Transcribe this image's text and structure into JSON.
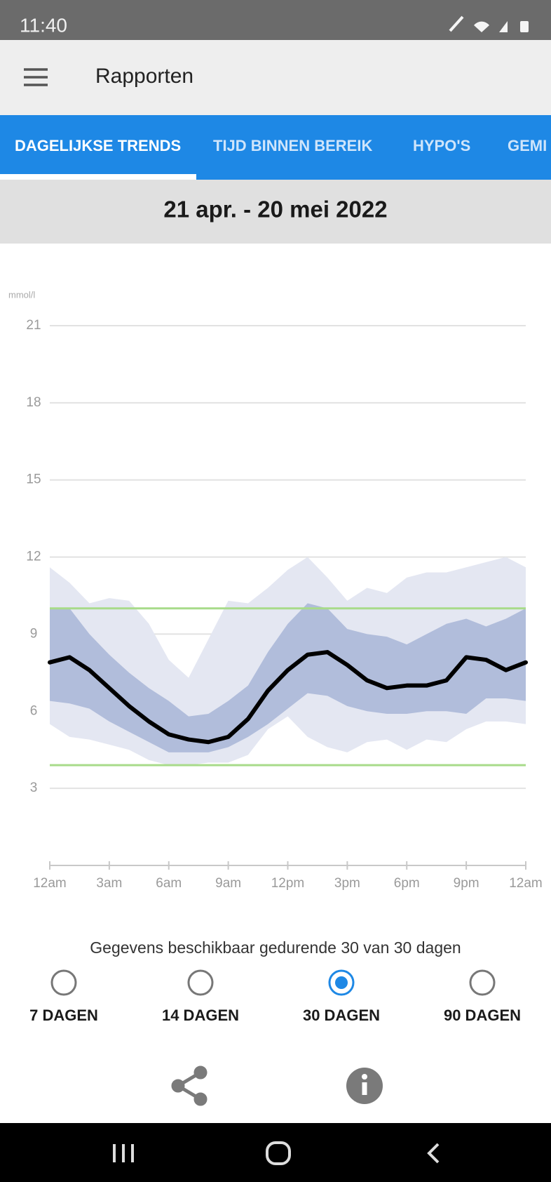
{
  "status_bar": {
    "time": "11:40"
  },
  "app_bar": {
    "title": "Rapporten"
  },
  "tabs": {
    "items": [
      "DAGELIJKSE TRENDS",
      "TIJD BINNEN BEREIK",
      "HYPO'S",
      "GEMI"
    ],
    "selected": 0
  },
  "date_range": "21 apr. - 20 mei 2022",
  "chart_data": {
    "type": "line",
    "y_label": "mmol/l",
    "x": [
      0,
      1,
      2,
      3,
      4,
      5,
      6,
      7,
      8,
      9,
      10,
      11,
      12,
      13,
      14,
      15,
      16,
      17,
      18,
      19,
      20,
      21,
      22,
      23,
      24
    ],
    "xlim": [
      0,
      24
    ],
    "xticks": [
      {
        "value": 0,
        "label": "12am"
      },
      {
        "value": 3,
        "label": "3am"
      },
      {
        "value": 6,
        "label": "6am"
      },
      {
        "value": 9,
        "label": "9am"
      },
      {
        "value": 12,
        "label": "12pm"
      },
      {
        "value": 15,
        "label": "3pm"
      },
      {
        "value": 18,
        "label": "6pm"
      },
      {
        "value": 21,
        "label": "9pm"
      },
      {
        "value": 24,
        "label": "12am"
      }
    ],
    "ylim": [
      0,
      21
    ],
    "yticks": [
      3,
      6,
      9,
      12,
      15,
      18,
      21
    ],
    "grid": true,
    "target_range": {
      "values": [
        3.9,
        10
      ],
      "color": "#a8db8a"
    },
    "bands": [
      {
        "color": "#e4e7f2",
        "high": [
          11.6,
          11.0,
          10.2,
          10.4,
          10.3,
          9.4,
          8.0,
          7.3,
          8.8,
          10.3,
          10.2,
          10.8,
          11.5,
          12.0,
          11.2,
          10.3,
          10.8,
          10.6,
          11.2,
          11.4,
          11.4,
          11.6,
          11.8,
          12.0,
          11.6
        ],
        "low": [
          5.5,
          5.0,
          4.9,
          4.7,
          4.5,
          4.1,
          3.9,
          3.9,
          4.0,
          4.0,
          4.3,
          5.3,
          5.8,
          5.0,
          4.6,
          4.4,
          4.8,
          4.9,
          4.5,
          4.9,
          4.8,
          5.3,
          5.6,
          5.6,
          5.5
        ]
      },
      {
        "color": "#b1bddb",
        "high": [
          10.0,
          10.0,
          9.0,
          8.2,
          7.5,
          6.9,
          6.4,
          5.8,
          5.9,
          6.4,
          7.0,
          8.3,
          9.4,
          10.2,
          10.0,
          9.2,
          9.0,
          8.9,
          8.6,
          9.0,
          9.4,
          9.6,
          9.3,
          9.6,
          10.0
        ],
        "low": [
          6.4,
          6.3,
          6.1,
          5.6,
          5.2,
          4.8,
          4.4,
          4.4,
          4.4,
          4.6,
          5.0,
          5.5,
          6.1,
          6.7,
          6.6,
          6.2,
          6.0,
          5.9,
          5.9,
          6.0,
          6.0,
          5.9,
          6.5,
          6.5,
          6.4
        ]
      }
    ],
    "series": [
      {
        "color": "#000000",
        "values": [
          7.9,
          8.1,
          7.6,
          6.9,
          6.2,
          5.6,
          5.1,
          4.9,
          4.8,
          5.0,
          5.7,
          6.8,
          7.6,
          8.2,
          8.3,
          7.8,
          7.2,
          6.9,
          7.0,
          7.0,
          7.2,
          8.1,
          8.0,
          7.6,
          7.9
        ]
      }
    ]
  },
  "availability": "Gegevens beschikbaar gedurende 30 van 30 dagen",
  "periods": {
    "options": [
      "7 DAGEN",
      "14 DAGEN",
      "30 DAGEN",
      "90 DAGEN"
    ],
    "selected": 2
  }
}
